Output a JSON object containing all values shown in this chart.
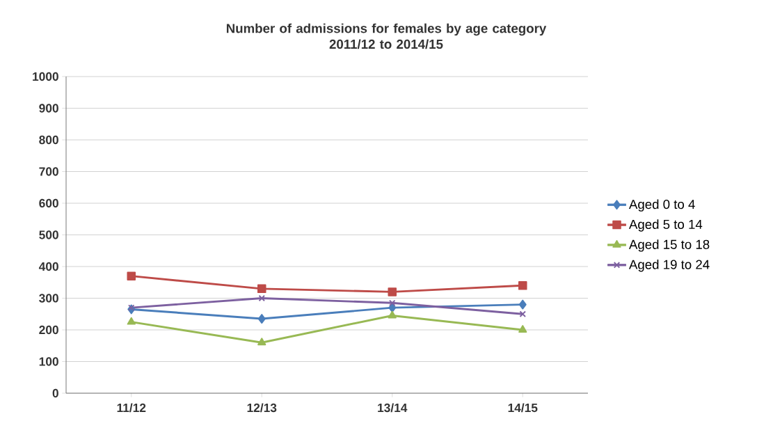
{
  "chart_data": {
    "type": "line",
    "title": "Number of admissions  for females by age category\n2011/12 to 2014/15",
    "categories": [
      "11/12",
      "12/13",
      "13/14",
      "14/15"
    ],
    "series": [
      {
        "name": "Aged 0 to 4",
        "color": "#4a7ebb",
        "marker": "diamond",
        "values": [
          265,
          235,
          270,
          280
        ]
      },
      {
        "name": "Aged 5 to 14",
        "color": "#be4b48",
        "marker": "square",
        "values": [
          370,
          330,
          320,
          340
        ]
      },
      {
        "name": "Aged 15 to 18",
        "color": "#98b954",
        "marker": "triangle",
        "values": [
          225,
          160,
          245,
          200
        ]
      },
      {
        "name": "Aged 19 to 24",
        "color": "#7d60a0",
        "marker": "cross",
        "values": [
          270,
          300,
          285,
          250
        ]
      }
    ],
    "ylim": [
      0,
      1000
    ],
    "yticks": [
      0,
      100,
      200,
      300,
      400,
      500,
      600,
      700,
      800,
      900,
      1000
    ],
    "grid": "y",
    "legend": "right"
  }
}
